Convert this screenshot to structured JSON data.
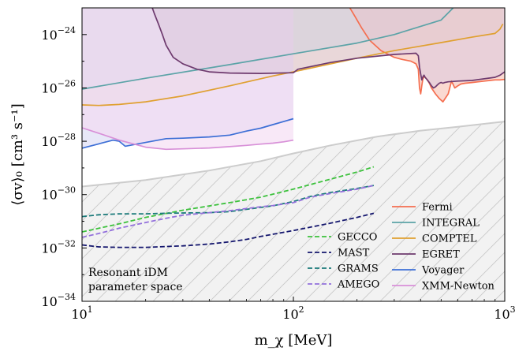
{
  "chart_data": {
    "type": "line",
    "xlabel": "m_χ [MeV]",
    "ylabel": "⟨σv⟩₀ [cm³ s⁻¹]",
    "xscale": "log",
    "yscale": "log",
    "xlim": [
      10,
      1000
    ],
    "ylim": [
      1e-34,
      1e-23
    ],
    "x_ticks": [
      {
        "value": 10,
        "base": "10",
        "exp": "1"
      },
      {
        "value": 100,
        "base": "10",
        "exp": "2"
      },
      {
        "value": 1000,
        "base": "10",
        "exp": "3"
      }
    ],
    "y_ticks": [
      {
        "value": 1e-24,
        "base": "10",
        "exp": "−24"
      },
      {
        "value": 1e-26,
        "base": "10",
        "exp": "−26"
      },
      {
        "value": 1e-28,
        "base": "10",
        "exp": "−28"
      },
      {
        "value": 1e-30,
        "base": "10",
        "exp": "−30"
      },
      {
        "value": 1e-32,
        "base": "10",
        "exp": "−32"
      },
      {
        "value": 1e-34,
        "base": "10",
        "exp": "−34"
      }
    ],
    "annotation": [
      "Resonant iDM",
      "parameter space"
    ],
    "legend_placement": "lower-right",
    "region": {
      "fill": "#f2f2f2",
      "edge": "#cccccc",
      "hatch": true,
      "x": [
        10,
        20,
        40,
        70,
        100,
        150,
        250,
        400,
        600,
        1000
      ],
      "y": [
        2e-30,
        3.5e-30,
        8e-30,
        1.8e-29,
        3.5e-29,
        7e-29,
        1.5e-28,
        2.5e-28,
        3.5e-28,
        5.5e-28
      ]
    },
    "series": [
      {
        "name": "Fermi",
        "color": "#f56e4f",
        "style": "solid",
        "fill": "#f7c0b3",
        "x": [
          185,
          195,
          210,
          230,
          260,
          300,
          330,
          360,
          380,
          390,
          395,
          400,
          405,
          410,
          415,
          420,
          430,
          440,
          450,
          470,
          490,
          510,
          540,
          560,
          580,
          600,
          620,
          650,
          700,
          750,
          800,
          850,
          900,
          950,
          1000
        ],
        "y": [
          1e-23,
          5e-24,
          1.8e-24,
          6e-25,
          2.5e-25,
          1.4e-25,
          1.15e-25,
          1e-25,
          8e-26,
          5e-26,
          1e-26,
          6e-27,
          1.2e-26,
          2.2e-26,
          2.6e-26,
          2.5e-26,
          2e-26,
          1.5e-26,
          1e-26,
          6e-27,
          4e-27,
          3e-27,
          6e-27,
          1.8e-26,
          1e-26,
          1.2e-26,
          1.4e-26,
          1.5e-26,
          1.6e-26,
          1.7e-26,
          1.8e-26,
          1.9e-26,
          2e-26,
          2e-26,
          2.1e-26
        ]
      },
      {
        "name": "INTEGRAL",
        "color": "#5ba3a7",
        "style": "solid",
        "fill": "#c4dfe0",
        "x": [
          10,
          20,
          50,
          100,
          200,
          300,
          500,
          570
        ],
        "y": [
          9e-27,
          2.3e-26,
          7.5e-26,
          1.9e-25,
          4.8e-25,
          1e-24,
          3.5e-24,
          1e-23
        ]
      },
      {
        "name": "COMPTEL",
        "color": "#e0a030",
        "style": "solid",
        "fill": "#f5dfb5",
        "x": [
          10,
          12,
          15,
          20,
          30,
          50,
          80,
          100,
          150,
          200,
          300,
          500,
          700,
          900,
          950,
          980
        ],
        "y": [
          2.3e-27,
          2.2e-27,
          2.4e-27,
          3e-27,
          5e-27,
          1.2e-26,
          2.8e-26,
          4e-26,
          8e-26,
          1.3e-25,
          2.5e-25,
          5e-25,
          8e-25,
          1.1e-24,
          1.6e-24,
          2.5e-24
        ]
      },
      {
        "name": "EGRET",
        "color": "#6e3a6e",
        "style": "solid",
        "fill": "#ddc9dd",
        "x": [
          21.5,
          22,
          23,
          24,
          25,
          27,
          30,
          35,
          40,
          50,
          70,
          100,
          105,
          150,
          200,
          300,
          380,
          390,
          395,
          400,
          405,
          410,
          415,
          420,
          430,
          440,
          450,
          460,
          470,
          480,
          490,
          500,
          510,
          520,
          540,
          600,
          700,
          800,
          900,
          950,
          1000
        ],
        "y": [
          1e-23,
          6e-24,
          2.5e-24,
          1e-24,
          4e-25,
          1.4e-25,
          8e-26,
          5e-26,
          4e-26,
          3.6e-26,
          3.5e-26,
          3.7e-26,
          5e-26,
          9e-26,
          1.3e-25,
          1.8e-25,
          2e-25,
          1.6e-25,
          6e-26,
          3.3e-26,
          2e-26,
          2.6e-26,
          3e-26,
          2.5e-26,
          2e-26,
          1.6e-26,
          1.2e-26,
          1e-26,
          1.1e-26,
          1.3e-26,
          1.5e-26,
          1.6e-26,
          1.5e-26,
          1.6e-26,
          1.7e-26,
          1.8e-26,
          1.9e-26,
          2.2e-26,
          2.5e-26,
          3e-26,
          4e-26
        ]
      },
      {
        "name": "Voyager",
        "color": "#3d6fd6",
        "style": "solid",
        "fill": "#d8d8f4",
        "x": [
          10,
          12,
          14,
          15,
          16,
          20,
          25,
          30,
          40,
          50,
          60,
          70,
          80,
          90,
          100
        ],
        "y": [
          5.5e-29,
          8e-29,
          1.1e-28,
          1e-28,
          6.5e-29,
          9e-29,
          1.25e-28,
          1.3e-28,
          1.45e-28,
          1.7e-28,
          2.4e-28,
          3.1e-28,
          4.2e-28,
          5.5e-28,
          7e-28
        ]
      },
      {
        "name": "XMM-Newton",
        "color": "#d890d8",
        "style": "solid",
        "fill": "#f3d8f1",
        "x": [
          10,
          12,
          15,
          20,
          25,
          30,
          40,
          50,
          60,
          70,
          80,
          90,
          100
        ],
        "y": [
          3.2e-28,
          2e-28,
          1.1e-28,
          6e-29,
          5e-29,
          5.2e-29,
          5.6e-29,
          6.3e-29,
          7e-29,
          7.8e-29,
          8.5e-29,
          9.5e-29,
          1.1e-28
        ]
      },
      {
        "name": "GECCO",
        "color": "#3cc13c",
        "style": "dashed",
        "x": [
          10,
          15,
          20,
          30,
          50,
          70,
          100,
          150,
          200,
          240
        ],
        "y": [
          4e-32,
          8e-32,
          1.4e-31,
          2.6e-31,
          5e-31,
          8e-31,
          1.6e-30,
          3.8e-30,
          7e-30,
          1.1e-29
        ]
      },
      {
        "name": "MAST",
        "color": "#15176e",
        "style": "dashed",
        "x": [
          10,
          12,
          15,
          20,
          30,
          40,
          50,
          60,
          70,
          100,
          150,
          200,
          240
        ],
        "y": [
          1.3e-32,
          1.1e-32,
          1.05e-32,
          1.05e-32,
          1.2e-32,
          1.4e-32,
          1.7e-32,
          2.1e-32,
          2.7e-32,
          4.5e-32,
          8.5e-32,
          1.4e-31,
          2e-31
        ]
      },
      {
        "name": "GRAMS",
        "color": "#1a7a7a",
        "style": "dashed",
        "x": [
          10,
          12,
          15,
          20,
          25,
          30,
          40,
          50,
          60,
          70,
          80,
          100,
          120,
          150,
          200,
          240
        ],
        "y": [
          1.5e-31,
          1.75e-31,
          1.9e-31,
          1.9e-31,
          2e-31,
          2.05e-31,
          2.1e-31,
          2.3e-31,
          2.8e-31,
          3.3e-31,
          3.8e-31,
          5.5e-31,
          8.5e-31,
          1.2e-30,
          1.7e-30,
          2.2e-30
        ]
      },
      {
        "name": "AMEGO",
        "color": "#9370db",
        "style": "dashed",
        "x": [
          10,
          12,
          15,
          20,
          25,
          30,
          40,
          50,
          60,
          70,
          80,
          100,
          120,
          150,
          200,
          240
        ],
        "y": [
          2.5e-32,
          3.5e-32,
          5.5e-32,
          9e-32,
          1.3e-31,
          1.7e-31,
          2.1e-31,
          2.5e-31,
          3e-31,
          3.5e-31,
          3.9e-31,
          5e-31,
          8e-31,
          1.1e-30,
          1.6e-30,
          2.2e-30
        ]
      }
    ],
    "legend_col1": [
      "GECCO",
      "MAST",
      "GRAMS",
      "AMEGO"
    ],
    "legend_col2": [
      "Fermi",
      "INTEGRAL",
      "COMPTEL",
      "EGRET",
      "Voyager",
      "XMM-Newton"
    ]
  }
}
